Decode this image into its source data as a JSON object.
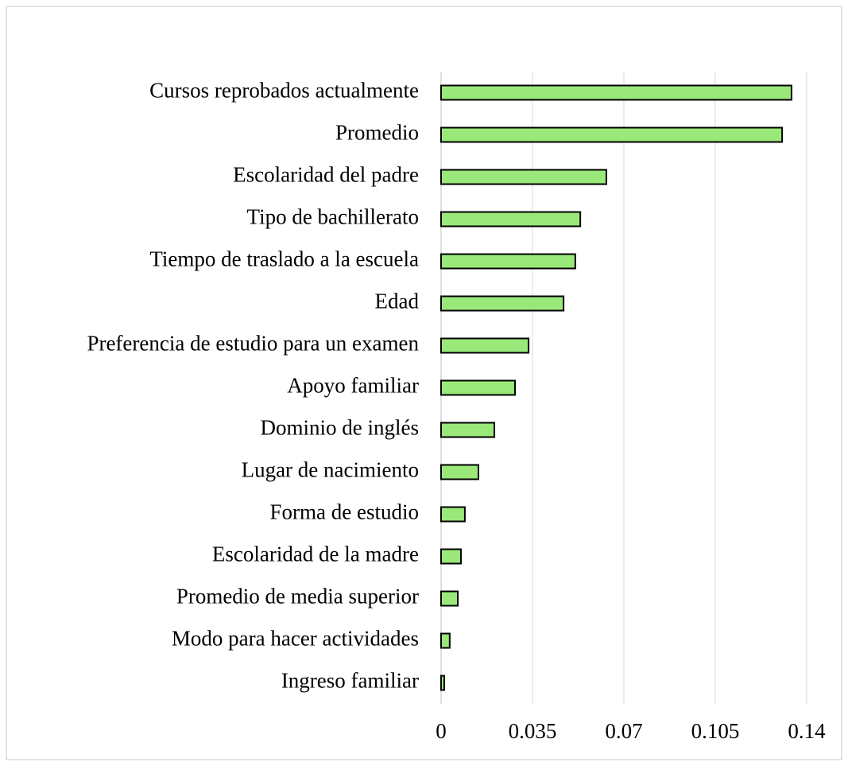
{
  "chart_data": {
    "type": "barh",
    "categories": [
      "Cursos reprobados actualmente",
      "Promedio",
      "Escolaridad del padre",
      "Tipo de bachillerato",
      "Tiempo de traslado a la escuela",
      "Edad",
      "Preferencia de estudio para un examen",
      "Apoyo familiar",
      "Dominio de inglés",
      "Lugar de nacimiento",
      "Forma de estudio",
      "Escolaridad de la madre",
      "Promedio de media superior",
      "Modo para hacer actividades",
      "Ingreso familiar"
    ],
    "values": [
      0.1342,
      0.1306,
      0.0633,
      0.0533,
      0.0514,
      0.0469,
      0.0335,
      0.0283,
      0.0204,
      0.0143,
      0.0091,
      0.0076,
      0.0064,
      0.0033,
      0.0012
    ],
    "color": "#9be87a",
    "xlim": [
      0,
      0.14
    ],
    "xticks": [
      0,
      0.035,
      0.07,
      0.105,
      0.14
    ],
    "grid": true
  }
}
